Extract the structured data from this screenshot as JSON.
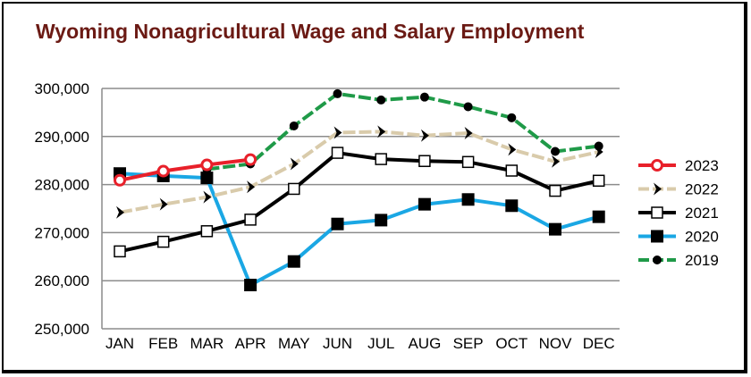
{
  "chart_data": {
    "type": "line",
    "title": "Wyoming Nonagricultural Wage and Salary Employment",
    "xlabel": "",
    "ylabel": "",
    "categories": [
      "JAN",
      "FEB",
      "MAR",
      "APR",
      "MAY",
      "JUN",
      "JUL",
      "AUG",
      "SEP",
      "OCT",
      "NOV",
      "DEC"
    ],
    "ylim": [
      250000,
      300000
    ],
    "yticks": [
      250000,
      260000,
      270000,
      280000,
      290000,
      300000
    ],
    "ytick_labels": [
      "250,000",
      "260,000",
      "270,000",
      "280,000",
      "290,000",
      "300,000"
    ],
    "grid": "horizontal",
    "legend_position": "right",
    "series": [
      {
        "name": "2023",
        "color": "#e8202a",
        "marker": "open-circle",
        "dashed": false,
        "values": [
          280900,
          282800,
          284100,
          285200,
          null,
          null,
          null,
          null,
          null,
          null,
          null,
          null
        ]
      },
      {
        "name": "2022",
        "color": "#d9cbab",
        "marker": "arrowhead",
        "dashed": true,
        "values": [
          274200,
          275900,
          277400,
          279500,
          284300,
          290800,
          291000,
          290200,
          290700,
          287300,
          284800,
          286800
        ]
      },
      {
        "name": "2021",
        "color": "#000000",
        "marker": "open-square",
        "dashed": false,
        "values": [
          266100,
          268100,
          270300,
          272700,
          279100,
          286600,
          285300,
          284900,
          284700,
          282900,
          278700,
          280800
        ]
      },
      {
        "name": "2020",
        "color": "#1aa7e4",
        "marker": "filled-square",
        "dashed": false,
        "values": [
          282300,
          281800,
          281400,
          259100,
          264000,
          271800,
          272600,
          275900,
          276900,
          275600,
          270700,
          273300
        ]
      },
      {
        "name": "2019",
        "color": "#1f9a48",
        "marker": "filled-circle",
        "dashed": true,
        "values": [
          null,
          null,
          283200,
          284300,
          292200,
          298900,
          297600,
          298200,
          296200,
          293900,
          286900,
          288000
        ]
      }
    ]
  }
}
